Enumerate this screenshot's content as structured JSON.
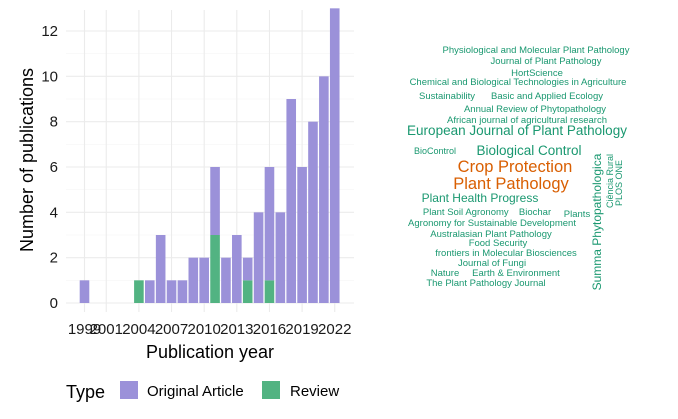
{
  "chart_data": [
    {
      "type": "bar",
      "stacked": true,
      "xlabel": "Publication year",
      "ylabel": "Number of publications",
      "x": [
        1999,
        2000,
        2001,
        2002,
        2003,
        2004,
        2005,
        2006,
        2007,
        2008,
        2009,
        2010,
        2011,
        2012,
        2013,
        2014,
        2015,
        2016,
        2017,
        2018,
        2019,
        2020,
        2021,
        2022
      ],
      "series": [
        {
          "name": "Original Article",
          "color": "#9b91d9",
          "values": [
            1,
            0,
            0,
            0,
            0,
            0,
            1,
            3,
            1,
            1,
            2,
            2,
            3,
            2,
            3,
            1,
            4,
            5,
            4,
            9,
            6,
            8,
            10,
            13
          ]
        },
        {
          "name": "Review",
          "color": "#52b382",
          "values": [
            0,
            0,
            0,
            0,
            0,
            1,
            0,
            0,
            0,
            0,
            0,
            0,
            3,
            0,
            0,
            1,
            0,
            1,
            0,
            0,
            0,
            0,
            0,
            0
          ]
        }
      ],
      "xticks": [
        1999,
        2001,
        2004,
        2007,
        2010,
        2013,
        2016,
        2019,
        2022
      ],
      "yticks": [
        0,
        2,
        4,
        6,
        8,
        10,
        12
      ],
      "ylim": [
        0,
        13
      ],
      "grid": true,
      "legend": {
        "title": "Type",
        "position": "bottom",
        "entries": [
          "Original Article",
          "Review"
        ]
      }
    },
    {
      "type": "wordcloud",
      "words": [
        {
          "text": "Physiological and Molecular Plant Pathology",
          "color": "#1a9870"
        },
        {
          "text": "Journal of Plant Pathology",
          "color": "#1a9870"
        },
        {
          "text": "HortScience",
          "color": "#1a9870"
        },
        {
          "text": "Chemical and Biological Technologies in Agriculture",
          "color": "#1a9870"
        },
        {
          "text": "Sustainability",
          "color": "#1a9870"
        },
        {
          "text": "Basic and Applied Ecology",
          "color": "#1a9870"
        },
        {
          "text": "Annual Review of Phytopathology",
          "color": "#1a9870"
        },
        {
          "text": "African journal of agricultural research",
          "color": "#1a9870"
        },
        {
          "text": "European Journal of Plant Pathology",
          "color": "#1a9870"
        },
        {
          "text": "BioControl",
          "color": "#1a9870"
        },
        {
          "text": "Biological Control",
          "color": "#1a9870"
        },
        {
          "text": "Crop Protection",
          "color": "#d95f02"
        },
        {
          "text": "Plant Pathology",
          "color": "#d95f02"
        },
        {
          "text": "Plant Health Progress",
          "color": "#1a9870"
        },
        {
          "text": "Plant Soil",
          "color": "#1a9870"
        },
        {
          "text": "Agronomy",
          "color": "#1a9870"
        },
        {
          "text": "Biochar",
          "color": "#1a9870"
        },
        {
          "text": "Plants",
          "color": "#1a9870"
        },
        {
          "text": "Agronomy for Sustainable Development",
          "color": "#1a9870"
        },
        {
          "text": "Australasian Plant Pathology",
          "color": "#1a9870"
        },
        {
          "text": "Food Security",
          "color": "#1a9870"
        },
        {
          "text": "frontiers in Molecular Biosciences",
          "color": "#1a9870"
        },
        {
          "text": "Journal of Fungi",
          "color": "#1a9870"
        },
        {
          "text": "Nature",
          "color": "#1a9870"
        },
        {
          "text": "Earth & Environment",
          "color": "#1a9870"
        },
        {
          "text": "The Plant Pathology Journal",
          "color": "#1a9870"
        },
        {
          "text": "Summa Phytopathologica",
          "color": "#1a9870"
        },
        {
          "text": "Ciência Rural",
          "color": "#1a9870"
        },
        {
          "text": "PLOS ONE",
          "color": "#1a9870"
        }
      ]
    }
  ]
}
